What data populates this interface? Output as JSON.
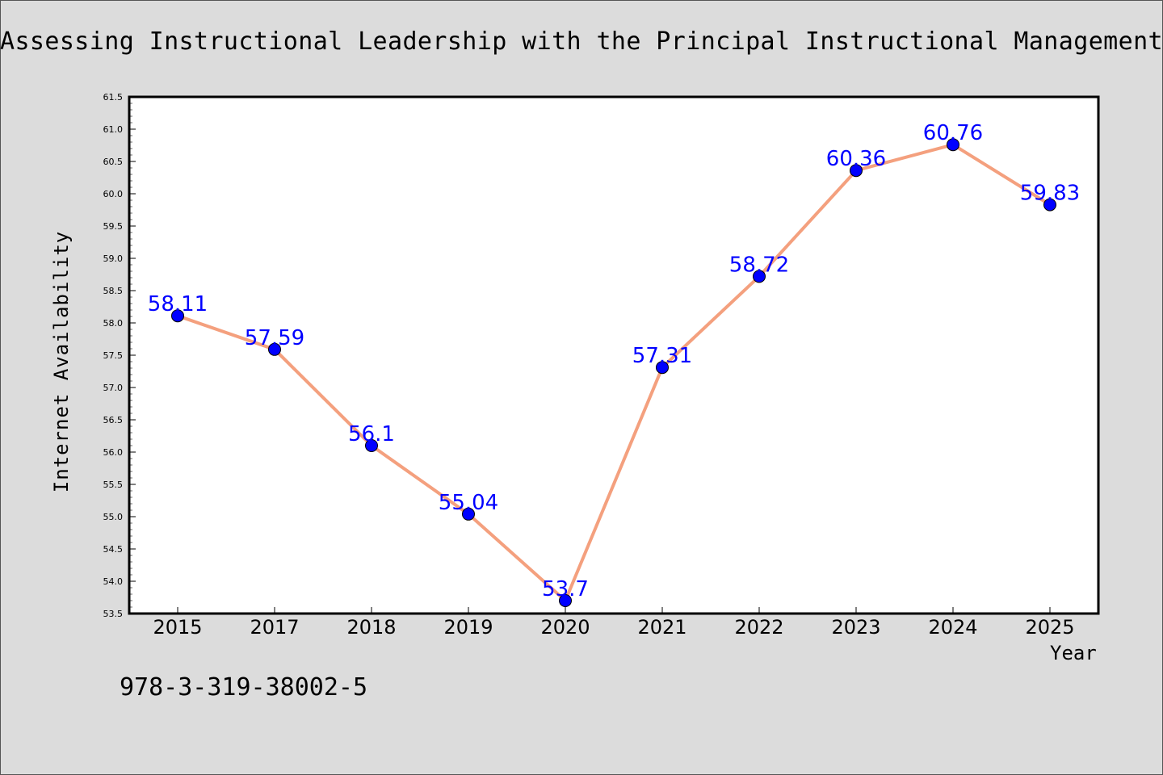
{
  "chart_data": {
    "type": "line",
    "title": "Assessing Instructional Leadership with the Principal Instructional Management R",
    "xlabel": "Year",
    "ylabel": "Internet Availability",
    "annotation": "978-3-319-38002-5",
    "categories": [
      "2015",
      "2017",
      "2018",
      "2019",
      "2020",
      "2021",
      "2022",
      "2023",
      "2024",
      "2025"
    ],
    "series": [
      {
        "values": [
          58.11,
          57.59,
          56.1,
          55.04,
          53.7,
          57.31,
          58.72,
          60.36,
          60.76,
          59.83
        ]
      }
    ],
    "data_labels": [
      "58.11",
      "57.59",
      "56.1",
      "55.04",
      "53.7",
      "57.31",
      "58.72",
      "60.36",
      "60.76",
      "59.83"
    ],
    "ylim": [
      53.5,
      61.5
    ],
    "yticks": [
      "53.5",
      "54.0",
      "54.5",
      "55.0",
      "55.5",
      "56.0",
      "56.5",
      "57.0",
      "57.5",
      "58.0",
      "58.5",
      "59.0",
      "59.5",
      "60.0",
      "60.5",
      "61.0",
      "61.5"
    ],
    "grid": false,
    "legend": false,
    "colors": {
      "line": "#f4a07e",
      "marker": "#0000ff",
      "data_label": "#0000ff",
      "background": "#dcdcdc",
      "plot_background": "#ffffff"
    }
  }
}
